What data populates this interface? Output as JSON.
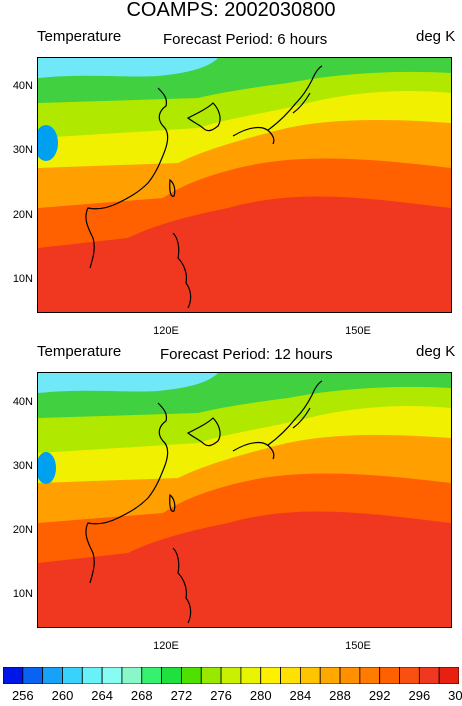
{
  "title": "COAMPS: 2002030800",
  "panels": [
    {
      "left_label": "Temperature",
      "center_label": "Forecast Period: 6 hours",
      "right_label": "deg K",
      "y_ticks": [
        "40N",
        "30N",
        "20N",
        "10N"
      ],
      "x_ticks": [
        "120E",
        "150E"
      ]
    },
    {
      "left_label": "Temperature",
      "center_label": "Forecast Period: 12 hours",
      "right_label": "deg K",
      "y_ticks": [
        "40N",
        "30N",
        "20N",
        "10N"
      ],
      "x_ticks": [
        "120E",
        "150E"
      ]
    }
  ],
  "colorbar": {
    "labels": [
      "256",
      "260",
      "264",
      "268",
      "272",
      "276",
      "280",
      "284",
      "288",
      "292",
      "296",
      "300"
    ],
    "colors": [
      "#0016e8",
      "#0a62f2",
      "#18a2f7",
      "#38d2fb",
      "#68f2f8",
      "#88fcf2",
      "#88f8c8",
      "#38f070",
      "#20e040",
      "#50e000",
      "#98e800",
      "#c8f000",
      "#e8f400",
      "#fff000",
      "#ffe000",
      "#ffc400",
      "#ffa800",
      "#ff9000",
      "#ff7c00",
      "#ff6000",
      "#f85010",
      "#f03820",
      "#e82010"
    ]
  },
  "map_colors": {
    "cold": "#00a0f0",
    "cool": "#70e8f8",
    "green": "#40d040",
    "yellow_green": "#b0e800",
    "yellow": "#f0f000",
    "orange": "#ffa000",
    "red_orange": "#ff6000",
    "red": "#f03820",
    "coastline": "#000000"
  }
}
